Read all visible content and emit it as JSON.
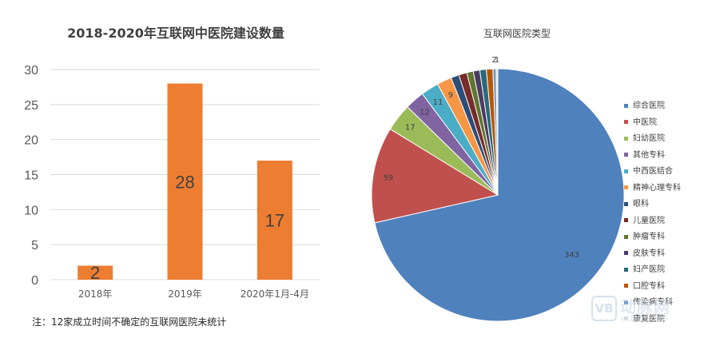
{
  "chart_data": [
    {
      "type": "bar",
      "title": "2018-2020年互联网中医院建设数量",
      "categories": [
        "2018年",
        "2019年",
        "2020年1月-4月"
      ],
      "values": [
        2,
        28,
        17
      ],
      "ylim": [
        0,
        30
      ],
      "yticks": [
        0,
        5,
        10,
        15,
        20,
        25,
        30
      ],
      "grid": true,
      "bar_color": "#ed7d31",
      "note": "注：12家成立时间不确定的互联网医院未统计"
    },
    {
      "type": "pie",
      "title": "互联网医院类型",
      "legend_position": "right",
      "slices": [
        {
          "name": "综合医院",
          "value": 343,
          "color": "#4f81bd"
        },
        {
          "name": "中医院",
          "value": 59,
          "color": "#c0504d"
        },
        {
          "name": "妇幼医院",
          "value": 17,
          "color": "#9bbb59"
        },
        {
          "name": "其他专科",
          "value": 12,
          "color": "#8064a2"
        },
        {
          "name": "中西医结合",
          "value": 11,
          "color": "#4bacc6"
        },
        {
          "name": "精神心理专科",
          "value": 9,
          "color": "#f79646"
        },
        {
          "name": "眼科",
          "value": 5,
          "color": "#2c4d75"
        },
        {
          "name": "儿童医院",
          "value": 5,
          "color": "#772c2a"
        },
        {
          "name": "肿瘤专科",
          "value": 4,
          "color": "#5f7530"
        },
        {
          "name": "皮肤专科",
          "value": 4,
          "color": "#4d3b62"
        },
        {
          "name": "妇产医院",
          "value": 4,
          "color": "#276a7c"
        },
        {
          "name": "口腔专科",
          "value": 4,
          "color": "#b65708"
        },
        {
          "name": "传染病专科",
          "value": 2,
          "color": "#729aca"
        },
        {
          "name": "康复医院",
          "value": 1,
          "color": "#d9d9d9"
        }
      ],
      "shown_labels": [
        "343",
        "59",
        "17",
        "12",
        "11",
        "9",
        "2",
        "1"
      ]
    }
  ],
  "watermark": {
    "logo": "VB",
    "text": "动脉网",
    "sub": "vcbeat.top"
  }
}
